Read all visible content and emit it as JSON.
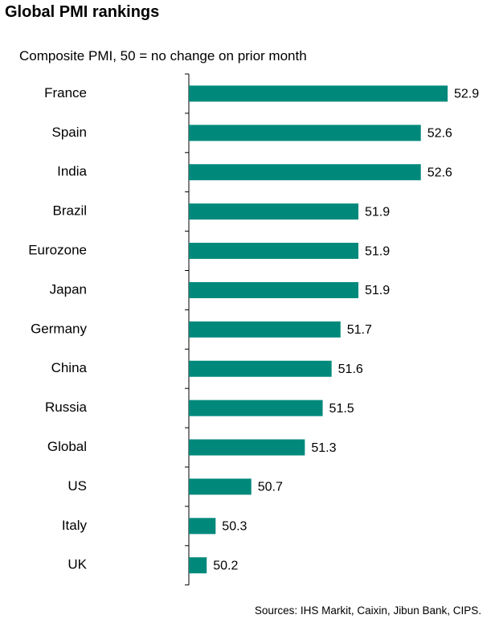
{
  "title": "Global PMI rankings",
  "subtitle": "Composite PMI, 50 = no change on prior month",
  "source": "Sources: IHS Markit, Caixin, Jibun Bank, CIPS.",
  "colors": {
    "bar": "#00897b",
    "axis": "#000000"
  },
  "chart_data": {
    "type": "bar",
    "orientation": "horizontal",
    "categories": [
      "France",
      "Spain",
      "India",
      "Brazil",
      "Eurozone",
      "Japan",
      "Germany",
      "China",
      "Russia",
      "Global",
      "US",
      "Italy",
      "UK"
    ],
    "values": [
      52.9,
      52.6,
      52.6,
      51.9,
      51.9,
      51.9,
      51.7,
      51.6,
      51.5,
      51.3,
      50.7,
      50.3,
      50.2
    ],
    "value_labels": [
      "52.9",
      "52.6",
      "52.6",
      "51.9",
      "51.9",
      "51.9",
      "51.7",
      "51.6",
      "51.5",
      "51.3",
      "50.7",
      "50.3",
      "50.2"
    ],
    "xlim": [
      50,
      52.9
    ],
    "grid": false,
    "legend": "none"
  }
}
